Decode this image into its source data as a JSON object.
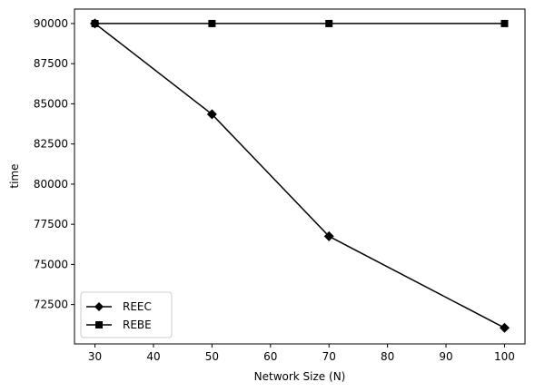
{
  "chart_data": {
    "type": "line",
    "title": "",
    "xlabel": "Network Size (N)",
    "ylabel": "time",
    "x": [
      30,
      50,
      70,
      100
    ],
    "xlim": [
      26.5,
      103.5
    ],
    "ylim": [
      70050,
      90900
    ],
    "xticks": [
      30,
      40,
      50,
      60,
      70,
      80,
      90,
      100
    ],
    "yticks": [
      72500,
      75000,
      77500,
      80000,
      82500,
      85000,
      87500,
      90000
    ],
    "grid": false,
    "legend_position": "lower-left",
    "series": [
      {
        "name": "REEC",
        "marker": "diamond",
        "color": "#000000",
        "values": [
          90000,
          84350,
          76750,
          71050
        ]
      },
      {
        "name": "REBE",
        "marker": "square",
        "color": "#000000",
        "values": [
          90000,
          90000,
          90000,
          90000
        ]
      }
    ]
  }
}
